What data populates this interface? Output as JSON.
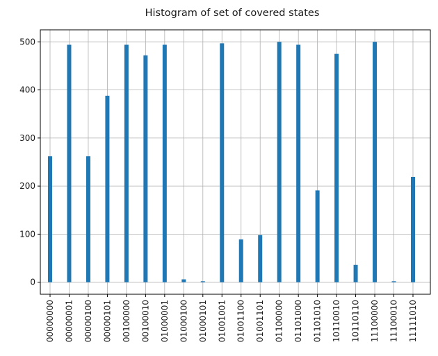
{
  "chart_data": {
    "type": "bar",
    "title": "Histogram of set of covered states",
    "xlabel": "",
    "ylabel": "",
    "categories": [
      "00000000",
      "00000001",
      "00000100",
      "00000101",
      "00100000",
      "00100010",
      "01000001",
      "01000100",
      "01000101",
      "01001001",
      "01001100",
      "01001101",
      "01100000",
      "01101000",
      "01101010",
      "10110010",
      "10110110",
      "11100000",
      "11100010",
      "11111010"
    ],
    "values": [
      262,
      494,
      262,
      388,
      494,
      472,
      494,
      6,
      2,
      497,
      89,
      98,
      500,
      494,
      191,
      475,
      36,
      500,
      2,
      219
    ],
    "ylim": [
      -25,
      525
    ],
    "yticks": [
      0,
      100,
      200,
      300,
      400,
      500
    ],
    "grid": true,
    "bar_color": "#1f77b4"
  }
}
